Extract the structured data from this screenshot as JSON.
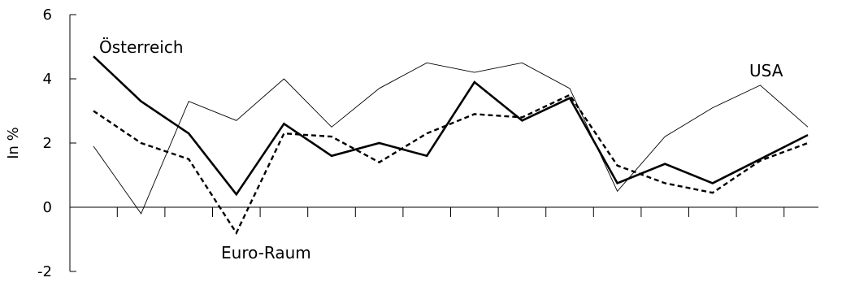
{
  "chart_data": {
    "type": "line",
    "ylabel": "In %",
    "xlabel": "",
    "ylim": [
      -2,
      6
    ],
    "yticks": [
      -2,
      0,
      2,
      4,
      6
    ],
    "x": [
      1,
      2,
      3,
      4,
      5,
      6,
      7,
      8,
      9,
      10,
      11,
      12,
      13,
      14,
      15,
      16
    ],
    "series": [
      {
        "name": "Österreich",
        "style": "thick-solid",
        "color": "#000000",
        "values": [
          4.7,
          3.3,
          2.3,
          0.4,
          2.6,
          1.6,
          2.0,
          1.6,
          3.9,
          2.7,
          3.4,
          0.75,
          1.35,
          0.75,
          1.5,
          2.25
        ]
      },
      {
        "name": "Euro-Raum",
        "style": "dashed",
        "color": "#000000",
        "values": [
          3.0,
          2.0,
          1.5,
          -0.8,
          2.3,
          2.2,
          1.4,
          2.3,
          2.9,
          2.8,
          3.5,
          1.3,
          0.75,
          0.45,
          1.45,
          2.0
        ]
      },
      {
        "name": "USA",
        "style": "thin-solid",
        "color": "#000000",
        "values": [
          1.9,
          -0.2,
          3.3,
          2.7,
          4.0,
          2.5,
          3.7,
          4.5,
          4.2,
          4.5,
          3.7,
          0.5,
          2.2,
          3.1,
          3.8,
          2.5
        ]
      }
    ]
  }
}
